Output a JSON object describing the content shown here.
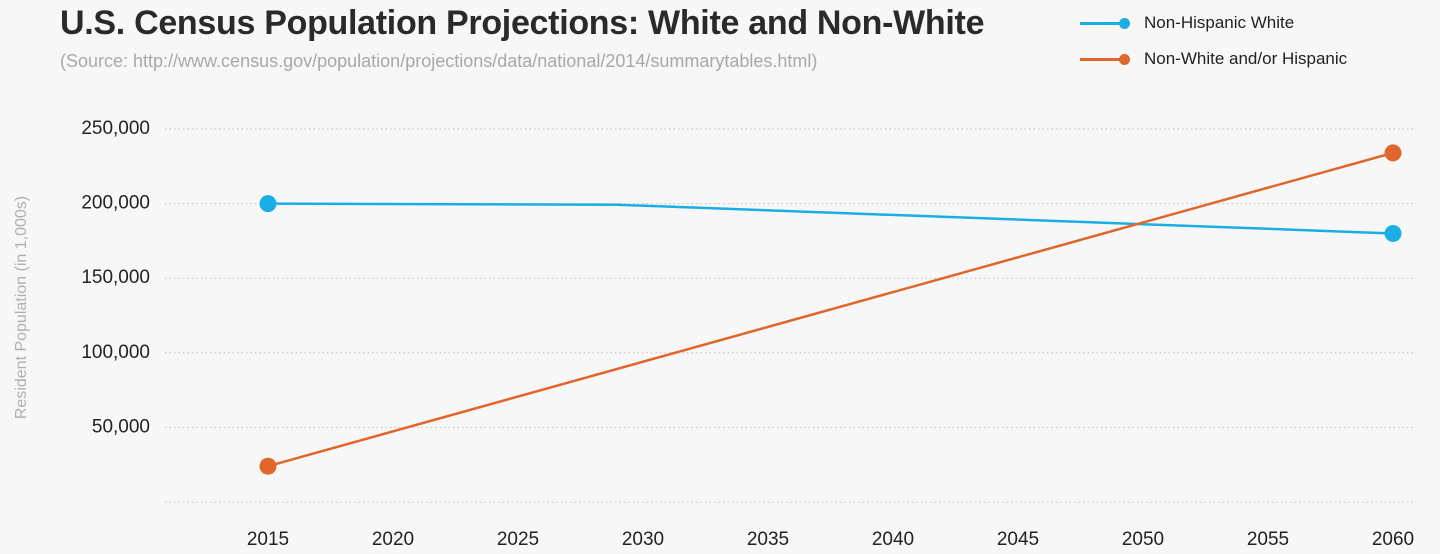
{
  "chart_data": {
    "type": "line",
    "title": "U.S. Census Population Projections: White and Non-White",
    "subtitle": "(Source: http://www.census.gov/population/projections/data/national/2014/summarytables.html)",
    "xlabel": "",
    "ylabel": "Resident Population (in 1,000s)",
    "x_ticks": [
      "2015",
      "2020",
      "2025",
      "2030",
      "2035",
      "2040",
      "2045",
      "2050",
      "2055",
      "2060"
    ],
    "y_ticks": [
      "50,000",
      "100,000",
      "150,000",
      "200,000",
      "250,000"
    ],
    "xlim": [
      2015,
      2060
    ],
    "ylim": [
      0,
      250000
    ],
    "grid": true,
    "legend_position": "top-right",
    "series": [
      {
        "name": "Non-Hispanic White",
        "color": "#1aaee5",
        "points": [
          {
            "x": 2015,
            "y": 200000,
            "marker": true
          },
          {
            "x": 2029,
            "y": 199200,
            "marker": false
          },
          {
            "x": 2060,
            "y": 180000,
            "marker": true
          }
        ]
      },
      {
        "name": "Non-White and/or Hispanic",
        "color": "#e0662b",
        "points": [
          {
            "x": 2015,
            "y": 24000,
            "marker": true
          },
          {
            "x": 2060,
            "y": 234000,
            "marker": true
          }
        ]
      }
    ]
  }
}
